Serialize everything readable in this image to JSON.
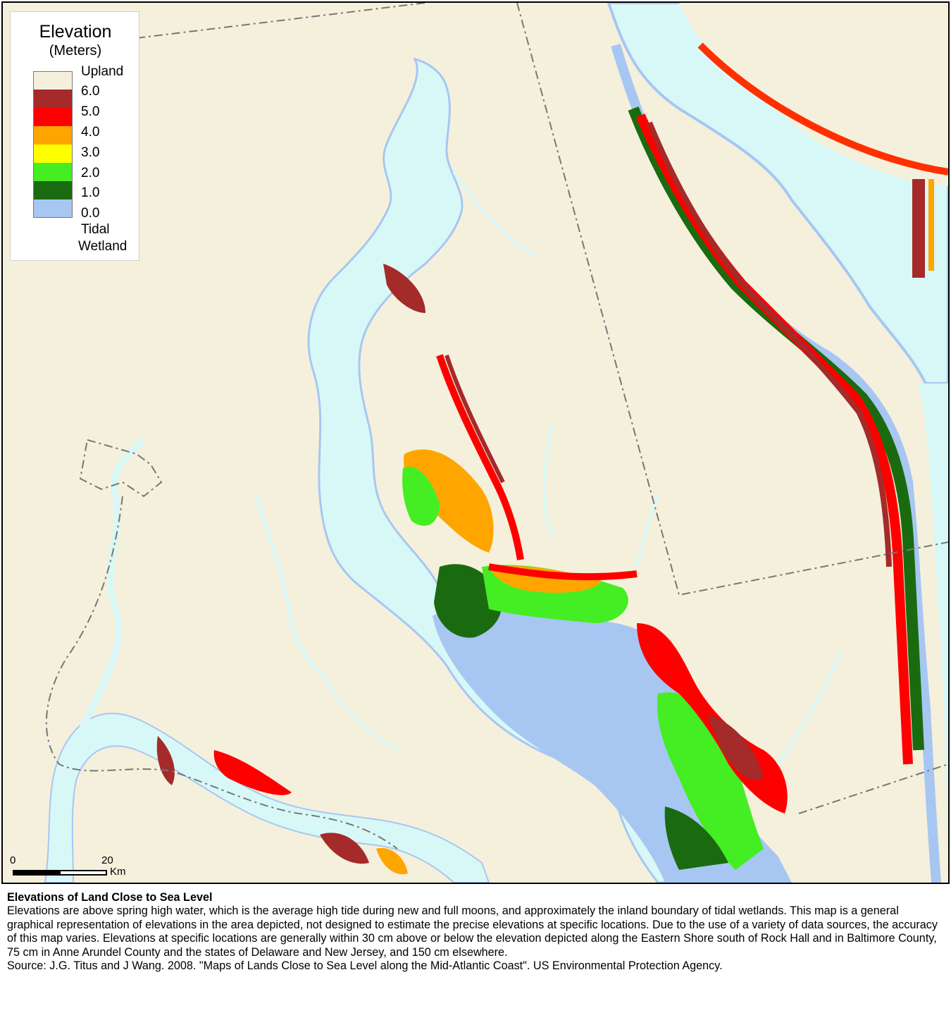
{
  "legend": {
    "title": "Elevation",
    "subtitle": "(Meters)",
    "items": [
      {
        "label": "Upland",
        "color": "#f5f0dc"
      },
      {
        "label": "6.0",
        "color": "#a52a2a"
      },
      {
        "label": "5.0",
        "color": "#ff0000"
      },
      {
        "label": "4.0",
        "color": "#ffa500"
      },
      {
        "label": "3.0",
        "color": "#ffff00"
      },
      {
        "label": "2.0",
        "color": "#44ee22"
      },
      {
        "label": "1.0",
        "color": "#1a6b10"
      },
      {
        "label": "0.0",
        "color": ""
      },
      {
        "label": "Tidal",
        "color": "#a7c7f2"
      },
      {
        "label": "Wetland",
        "color": ""
      }
    ]
  },
  "scale": {
    "start": "0",
    "end": "20",
    "unit": "Km"
  },
  "colors": {
    "water": "#d8f8f8",
    "upland": "#f5f0dc",
    "tidal_wetland": "#a7c7f2",
    "boundary": "#777777"
  },
  "caption": {
    "title": "Elevations of Land Close to Sea Level",
    "body": "Elevations are above spring high water, which is the average high tide during new and full moons, and approximately the inland boundary of tidal wetlands. This map is a general graphical representation of elevations in the area depicted,  not designed to estimate the precise elevations at specific locations. Due to the use of a variety of data sources, the accuracy of this map varies.  Elevations at specific locations are generally within 30 cm above or below the elevation depicted along the Eastern Shore south of Rock Hall and in Baltimore County, 75 cm in Anne Arundel County and the states of Delaware and New Jersey, and 150 cm elsewhere.",
    "source": "Source:  J.G. Titus and J Wang.  2008.   \"Maps of Lands Close to Sea Level along the Mid-Atlantic Coast\".  US Environmental Protection Agency."
  }
}
